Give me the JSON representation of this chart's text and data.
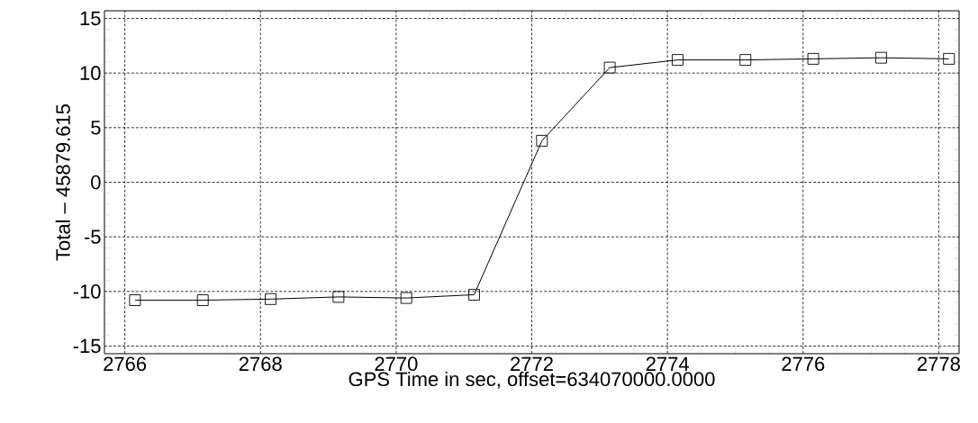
{
  "chart_data": {
    "type": "line",
    "xlabel": "GPS Time in sec, offset=634070000.0000",
    "ylabel": "Total – 45879.615",
    "x": [
      2766.15,
      2767.15,
      2768.15,
      2769.15,
      2770.15,
      2771.15,
      2772.15,
      2773.15,
      2774.15,
      2775.15,
      2776.15,
      2777.15,
      2778.15
    ],
    "series": [
      {
        "color": "#000000",
        "values": [
          -10.8,
          -10.8,
          -10.7,
          -10.5,
          -10.6,
          -10.3,
          3.8,
          10.5,
          11.2,
          11.2,
          11.3,
          11.4,
          11.3
        ]
      }
    ],
    "xlim": [
      2765.7,
      2778.3
    ],
    "ylim": [
      -15.7,
      15.7
    ],
    "xticks": [
      2766,
      2768,
      2770,
      2772,
      2774,
      2776,
      2778
    ],
    "yticks": [
      -15,
      -10,
      -5,
      0,
      5,
      10,
      15
    ],
    "grid": true,
    "marker": "square",
    "line_style": "solid"
  }
}
